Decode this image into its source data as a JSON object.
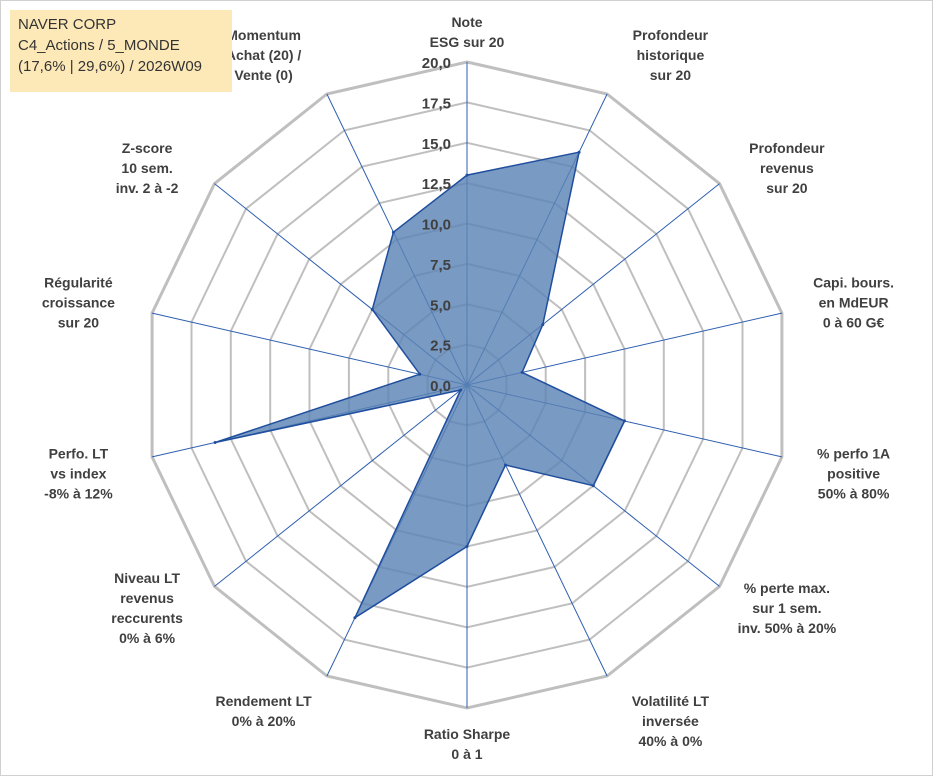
{
  "info": {
    "line1": "NAVER CORP",
    "line2": "C4_Actions / 5_MONDE",
    "line3": "(17,6% | 29,6%) / 2026W09"
  },
  "chart_data": {
    "type": "radar",
    "title": "NAVER CORP",
    "rmin": 0,
    "rmax": 20,
    "tick_step": 2.5,
    "tick_labels": [
      "0,0",
      "2,5",
      "5,0",
      "7,5",
      "10,0",
      "12,5",
      "15,0",
      "17,5",
      "20,0"
    ],
    "axes": [
      {
        "label": [
          "Note",
          "ESG sur 20"
        ],
        "value": 13.0
      },
      {
        "label": [
          "Profondeur",
          "historique",
          "sur 20"
        ],
        "value": 16.0
      },
      {
        "label": [
          "Profondeur",
          "revenus",
          "sur 20"
        ],
        "value": 6.0
      },
      {
        "label": [
          "Capi. bours.",
          "en MdEUR",
          "0 à 60 G€"
        ],
        "value": 3.5
      },
      {
        "label": [
          "% perfo 1A",
          "positive",
          "50% à 80%"
        ],
        "value": 10.0
      },
      {
        "label": [
          "% perte max.",
          "sur 1 sem.",
          "inv. 50% à 20%"
        ],
        "value": 10.0
      },
      {
        "label": [
          "Volatilité LT",
          "inversée",
          "40% à 0%"
        ],
        "value": 5.5
      },
      {
        "label": [
          "Ratio Sharpe",
          "0 à 1"
        ],
        "value": 10.0
      },
      {
        "label": [
          "Rendement LT",
          "0% à 20%"
        ],
        "value": 16.0
      },
      {
        "label": [
          "Niveau LT",
          "revenus",
          "reccurents",
          "0% à 6%"
        ],
        "value": 0.5
      },
      {
        "label": [
          "Perfo. LT",
          "vs index",
          "-8% à 12%"
        ],
        "value": 16.0
      },
      {
        "label": [
          "Régularité",
          "croissance",
          "sur 20"
        ],
        "value": 3.0
      },
      {
        "label": [
          "Z-score",
          "10 sem.",
          "inv. 2 à -2"
        ],
        "value": 7.5
      },
      {
        "label": [
          "Momentum",
          "Achat (20) /",
          "Vente (0)"
        ],
        "value": 10.5
      }
    ],
    "colors": {
      "fill": "#5b84b5",
      "stroke": "#1f4e9e",
      "grid": "#bfbfbf",
      "spoke": "#2e5fb0"
    }
  }
}
